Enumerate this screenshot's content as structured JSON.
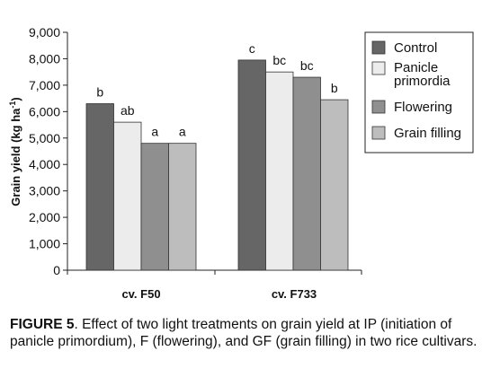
{
  "chart_data": {
    "type": "bar",
    "ylabel": "Grain yield (kg ha⁻¹)",
    "ylabel_main": "Grain yield (kg ha",
    "ylabel_sup": "-1",
    "ylabel_tail": ")",
    "xlabel": "",
    "ylim": [
      0,
      9000
    ],
    "yticks": [
      0,
      1000,
      2000,
      3000,
      4000,
      5000,
      6000,
      7000,
      8000,
      9000
    ],
    "ytick_labels": [
      "0",
      "1,000",
      "2,000",
      "3,000",
      "4,000",
      "5,000",
      "6,000",
      "7,000",
      "8,000",
      "9,000"
    ],
    "categories": [
      "cv. F50",
      "cv. F733"
    ],
    "series": [
      {
        "name": "Control",
        "values": [
          6300,
          7950
        ],
        "labels": [
          "b",
          "c"
        ]
      },
      {
        "name": "Panicle primordia",
        "legend_lines": [
          "Panicle",
          "primordia"
        ],
        "values": [
          5600,
          7500
        ],
        "labels": [
          "ab",
          "bc"
        ]
      },
      {
        "name": "Flowering",
        "values": [
          4800,
          7300
        ],
        "labels": [
          "a",
          "bc"
        ]
      },
      {
        "name": "Grain filling",
        "values": [
          4800,
          6450
        ],
        "labels": [
          "a",
          "b"
        ]
      }
    ],
    "colors": [
      "#666666",
      "#ececec",
      "#8f8f8f",
      "#bdbdbd"
    ],
    "grid": false,
    "legend_position": "top-right"
  },
  "caption": {
    "label": "FIGURE 5",
    "text": ". Effect of two light treatments on grain yield at IP (initiation of panicle primordium), F (flowering), and GF (grain filling) in two rice cultivars."
  }
}
